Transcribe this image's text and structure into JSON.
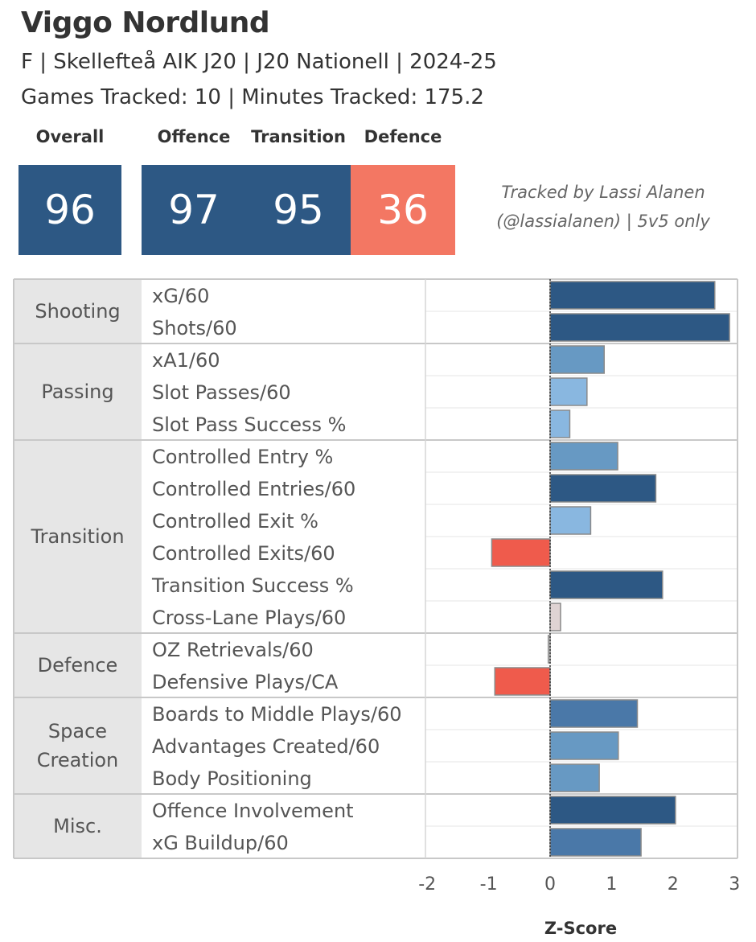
{
  "header": {
    "player_name": "Viggo Nordlund",
    "subtitle": "F | Skellefteå AIK J20 | J20 Nationell | 2024-25",
    "tracked_info": "Games Tracked: 10 | Minutes Tracked: 175.2"
  },
  "scores": [
    {
      "label": "Overall",
      "value": "96",
      "color": "#2d5884"
    },
    {
      "label": "Offence",
      "value": "97",
      "color": "#2d5884"
    },
    {
      "label": "Transition",
      "value": "95",
      "color": "#2d5884"
    },
    {
      "label": "Defence",
      "value": "36",
      "color": "#f37763"
    }
  ],
  "credit": {
    "line1": "Tracked by Lassi Alanen",
    "line2": "(@lassialanen) | 5v5 only"
  },
  "chart_data": {
    "type": "bar",
    "orientation": "horizontal",
    "xlabel": "Z-Score",
    "xlim": [
      -2,
      3
    ],
    "xticks": [
      "-2",
      "-1",
      "0",
      "1",
      "2",
      "3"
    ],
    "groups": [
      {
        "name": "Shooting",
        "lines": [
          "Shooting"
        ],
        "metrics": [
          {
            "label": "xG/60",
            "value": 2.68,
            "color": "#2d5884"
          },
          {
            "label": "Shots/60",
            "value": 2.92,
            "color": "#2d5884"
          }
        ]
      },
      {
        "name": "Passing",
        "lines": [
          "Passing"
        ],
        "metrics": [
          {
            "label": "xA1/60",
            "value": 0.88,
            "color": "#6799c3"
          },
          {
            "label": "Slot Passes/60",
            "value": 0.6,
            "color": "#89b7e0"
          },
          {
            "label": "Slot Pass Success %",
            "value": 0.32,
            "color": "#89b7e0"
          }
        ]
      },
      {
        "name": "Transition",
        "lines": [
          "Transition"
        ],
        "metrics": [
          {
            "label": "Controlled Entry %",
            "value": 1.1,
            "color": "#6799c3"
          },
          {
            "label": "Controlled Entries/60",
            "value": 1.72,
            "color": "#2d5884"
          },
          {
            "label": "Controlled Exit %",
            "value": 0.66,
            "color": "#89b7e0"
          },
          {
            "label": "Controlled Exits/60",
            "value": -0.95,
            "color": "#ef5b4c"
          },
          {
            "label": "Transition Success %",
            "value": 1.83,
            "color": "#2d5884"
          },
          {
            "label": "Cross-Lane Plays/60",
            "value": 0.17,
            "color": "#dfd3d3"
          }
        ]
      },
      {
        "name": "Defence",
        "lines": [
          "Defence"
        ],
        "metrics": [
          {
            "label": "OZ Retrievals/60",
            "value": -0.03,
            "color": "#dddddd"
          },
          {
            "label": "Defensive Plays/CA",
            "value": -0.9,
            "color": "#ef5b4c"
          }
        ]
      },
      {
        "name": "Space Creation",
        "lines": [
          "Space",
          "Creation"
        ],
        "metrics": [
          {
            "label": "Boards to Middle Plays/60",
            "value": 1.42,
            "color": "#4a78a8"
          },
          {
            "label": "Advantages Created/60",
            "value": 1.11,
            "color": "#6799c3"
          },
          {
            "label": "Body Positioning",
            "value": 0.8,
            "color": "#6799c3"
          }
        ]
      },
      {
        "name": "Misc.",
        "lines": [
          "Misc."
        ],
        "metrics": [
          {
            "label": "Offence Involvement",
            "value": 2.04,
            "color": "#2d5884"
          },
          {
            "label": "xG Buildup/60",
            "value": 1.48,
            "color": "#4a78a8"
          }
        ]
      }
    ]
  }
}
